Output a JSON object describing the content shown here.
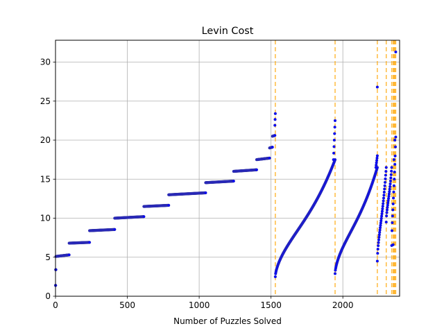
{
  "chart_data": {
    "type": "scatter",
    "title": "Levin Cost",
    "xlabel": "Number of Puzzles Solved",
    "ylabel": "",
    "xlim": [
      0,
      2395
    ],
    "ylim": [
      0,
      32.8
    ],
    "x_ticks": [
      0,
      500,
      1000,
      1500,
      2000
    ],
    "y_ticks": [
      0,
      5,
      10,
      15,
      20,
      25,
      30
    ],
    "grid": true,
    "legend": "none",
    "colors": {
      "points": "#0000ff",
      "point_edge": "#3a3a9a",
      "vlines": "#ffa500",
      "grid": "#b0b0b0"
    },
    "vlines": [
      1530,
      1946,
      2240,
      2302,
      2340,
      2350,
      2356,
      2362,
      2368
    ],
    "segments": [
      {
        "type": "step",
        "x": [
          0,
          1
        ],
        "y": [
          1.39,
          1.39
        ]
      },
      {
        "type": "step",
        "x": [
          1,
          3
        ],
        "y": [
          3.4,
          3.4
        ]
      },
      {
        "type": "step",
        "x": [
          3,
          95
        ],
        "y": [
          5.1,
          5.3
        ]
      },
      {
        "type": "step",
        "x": [
          95,
          237
        ],
        "y": [
          6.8,
          6.9
        ]
      },
      {
        "type": "step",
        "x": [
          237,
          412
        ],
        "y": [
          8.4,
          8.55
        ]
      },
      {
        "type": "step",
        "x": [
          412,
          615
        ],
        "y": [
          10.0,
          10.2
        ]
      },
      {
        "type": "step",
        "x": [
          615,
          788
        ],
        "y": [
          11.5,
          11.65
        ]
      },
      {
        "type": "step",
        "x": [
          788,
          1045
        ],
        "y": [
          13.0,
          13.25
        ]
      },
      {
        "type": "step",
        "x": [
          1045,
          1240
        ],
        "y": [
          14.55,
          14.75
        ]
      },
      {
        "type": "step",
        "x": [
          1240,
          1400
        ],
        "y": [
          16.0,
          16.2
        ]
      },
      {
        "type": "step",
        "x": [
          1400,
          1490
        ],
        "y": [
          17.5,
          17.7
        ]
      },
      {
        "type": "step",
        "x": [
          1490,
          1510
        ],
        "y": [
          19.0,
          19.1
        ]
      },
      {
        "type": "step",
        "x": [
          1510,
          1527
        ],
        "y": [
          20.5,
          20.6
        ]
      },
      {
        "type": "step",
        "x": [
          1527,
          1530
        ],
        "y": [
          21.9,
          23.4
        ]
      },
      {
        "type": "curve",
        "x": [
          1530,
          1946
        ],
        "y": [
          2.5,
          17.5
        ]
      },
      {
        "type": "step",
        "x": [
          1935,
          1946
        ],
        "y": [
          17.5,
          22.5
        ]
      },
      {
        "type": "curve",
        "x": [
          1946,
          2240
        ],
        "y": [
          2.9,
          16.5
        ]
      },
      {
        "type": "step",
        "x": [
          2230,
          2240
        ],
        "y": [
          16.5,
          18.0
        ]
      },
      {
        "type": "curve",
        "x": [
          2240,
          2302
        ],
        "y": [
          4.5,
          16.5
        ]
      },
      {
        "type": "curve",
        "x": [
          2302,
          2340
        ],
        "y": [
          9.5,
          16.5
        ]
      },
      {
        "type": "curve",
        "x": [
          2340,
          2368
        ],
        "y": [
          6.5,
          20.4
        ]
      }
    ],
    "outliers": [
      [
        2240,
        26.8
      ],
      [
        2368,
        31.3
      ],
      [
        2362,
        20.0
      ],
      [
        2356,
        17.5
      ],
      [
        2350,
        6.6
      ]
    ]
  }
}
